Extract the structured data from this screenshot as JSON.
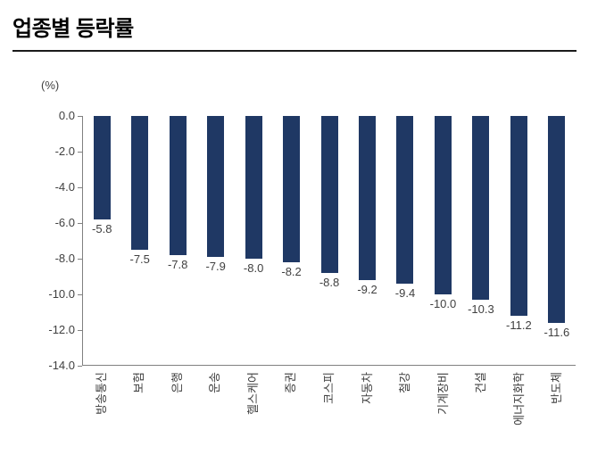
{
  "title": "업종별 등락률",
  "chart_data": {
    "type": "bar",
    "title": "업종별 등락률",
    "unit_label": "(%)",
    "categories": [
      "방송통신",
      "보험",
      "은행",
      "운송",
      "헬스케어",
      "증권",
      "코스피",
      "자동차",
      "철강",
      "기계장비",
      "건설",
      "에너지화학",
      "반도체"
    ],
    "values": [
      -5.8,
      -7.5,
      -7.8,
      -7.9,
      -8.0,
      -8.2,
      -8.8,
      -9.2,
      -9.4,
      -10.0,
      -10.3,
      -11.2,
      -11.6
    ],
    "value_labels": [
      "-5.8",
      "-7.5",
      "-7.8",
      "-7.9",
      "-8.0",
      "-8.2",
      "-8.8",
      "-9.2",
      "-9.4",
      "-10.0",
      "-10.3",
      "-11.2",
      "-11.6"
    ],
    "y_ticks": [
      "0.0",
      "-2.0",
      "-4.0",
      "-6.0",
      "-8.0",
      "-10.0",
      "-12.0",
      "-14.0"
    ],
    "ylim": [
      -14,
      0
    ],
    "bar_color": "#1F3864",
    "axis_color": "#808080",
    "label_color": "#404040",
    "grid": false,
    "legend": "none"
  }
}
